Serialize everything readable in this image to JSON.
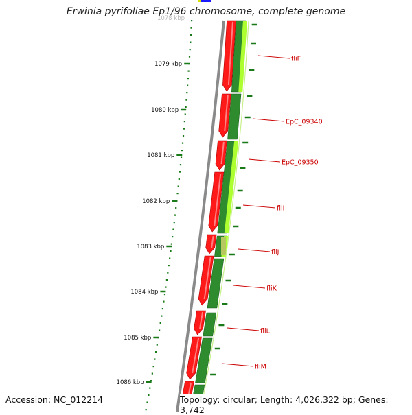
{
  "title": "Erwinia pyrifoliae Ep1/96 chromosome, complete genome",
  "footer": {
    "accession": "Accession: NC_012214",
    "topology": "Topology: circular; Length: 4,026,322 bp; Genes: 3,742"
  },
  "ruler": {
    "labels": [
      "1079 kbp",
      "1080 kbp",
      "1081 kbp",
      "1082 kbp",
      "1083 kbp",
      "1084 kbp",
      "1085 kbp",
      "1086 kbp"
    ],
    "top_partial_label": "1078 kbp"
  },
  "genes": [
    {
      "name": "fliF"
    },
    {
      "name": "EpC_09340"
    },
    {
      "name": "EpC_09350"
    },
    {
      "name": "fliI"
    },
    {
      "name": "fliJ"
    },
    {
      "name": "fliK"
    },
    {
      "name": "fliL"
    },
    {
      "name": "fliM"
    }
  ],
  "colors": {
    "forward_cds": "#ff1a1a",
    "reverse_cds": "#2e8b2e",
    "reverse_light": "#adff2f",
    "backbone": "#7a7a7a",
    "tick": "#1a7a1a",
    "label": "#cc0000",
    "accent_blue": "#1a1aff"
  }
}
